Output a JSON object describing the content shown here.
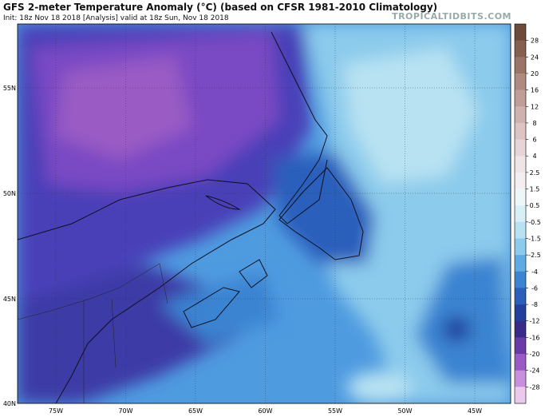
{
  "header": {
    "title": "GFS 2-meter Temperature Anomaly (°C) (based on CFSR 1981-2010 Climatology)",
    "subtitle": "Init: 18z Nov 18 2018   [Analysis]   valid at 18z Sun, Nov 18 2018",
    "credit": "TROPICALTIDBITS.COM"
  },
  "map": {
    "lat_labels": [
      "55N",
      "50N",
      "45N",
      "40N"
    ],
    "lon_labels": [
      "75W",
      "70W",
      "65W",
      "60W",
      "55W",
      "50W",
      "45W"
    ]
  },
  "colorbar": {
    "labels": [
      "28",
      "24",
      "20",
      "16",
      "12",
      "8",
      "6",
      "4",
      "2.5",
      "1.5",
      "0.5",
      "-0.5",
      "-1.5",
      "-2.5",
      "-4",
      "-6",
      "-8",
      "-12",
      "-16",
      "-20",
      "-24",
      "-28"
    ],
    "colors": [
      "#6e4a38",
      "#85604e",
      "#9a7466",
      "#ae8a80",
      "#c09e98",
      "#cfb2b0",
      "#dcc4c4",
      "#e6d4d6",
      "#efe4e6",
      "#f4eef0",
      "#eef6f8",
      "#d8eff6",
      "#b8e2f2",
      "#8ccbec",
      "#5eaae2",
      "#3a84d2",
      "#2a5fbc",
      "#23409c",
      "#3a2a8a",
      "#6a3aa8",
      "#9a5cc4",
      "#c890dc",
      "#ecc8ec"
    ]
  }
}
